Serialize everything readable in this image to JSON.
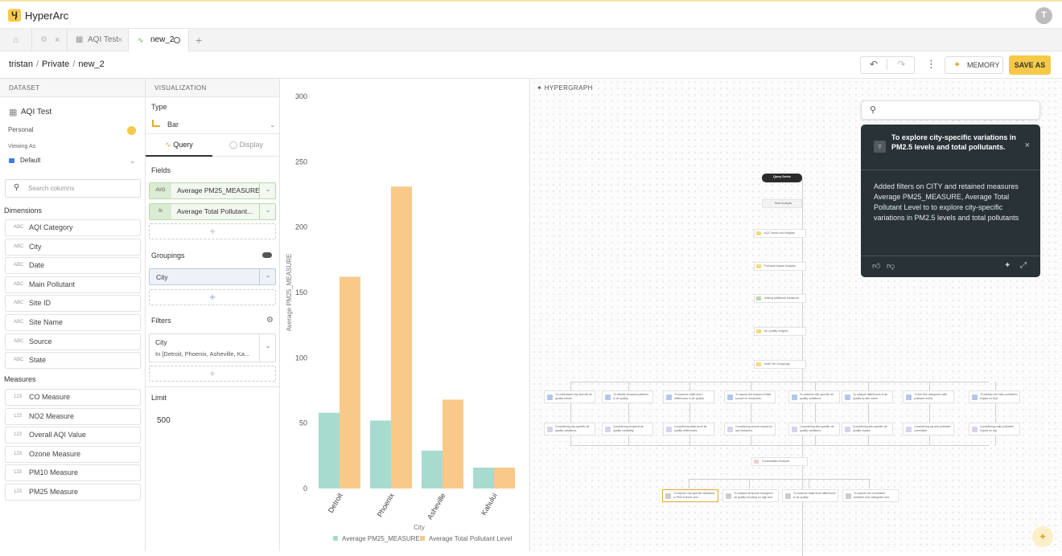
{
  "app": {
    "brand": "HyperArc",
    "avatar": "T",
    "logo_glyph": "Ӌ"
  },
  "tabs": [
    {
      "label": "",
      "icon": "home-icon"
    },
    {
      "label": "",
      "icon": "gear-icon"
    },
    {
      "label": "AQI Test",
      "icon": "table-icon"
    },
    {
      "label": "new_2",
      "icon": "chart-icon"
    }
  ],
  "toolbar": {
    "breadcrumb": [
      "tristan",
      "Private",
      "new_2"
    ],
    "undo": "↶",
    "redo": "↷",
    "more": "⋮",
    "memory_label": "MEMORY",
    "save_label": "SAVE AS"
  },
  "dataset": {
    "header": "DATASET",
    "name": "AQI Test",
    "owner": "Personal",
    "viewing_as_label": "Viewing As",
    "viewing_as_value": "Default",
    "search_placeholder": "Search columns",
    "dimensions_title": "Dimensions",
    "dimensions": [
      "AQI Category",
      "City",
      "Date",
      "Main Pollutant",
      "Site ID",
      "Site Name",
      "Source",
      "State"
    ],
    "dimension_tag": "ABC",
    "measures_title": "Measures",
    "measures": [
      "CO Measure",
      "NO2 Measure",
      "Overall AQI Value",
      "Ozone Measure",
      "PM10 Measure",
      "PM25 Measure"
    ],
    "measure_tag": "123"
  },
  "visualization": {
    "header": "VISUALIZATION",
    "type_label": "Type",
    "type_value": "Bar",
    "tab_query": "Query",
    "tab_display": "Display",
    "fields_label": "Fields",
    "fields": [
      {
        "tag": "AVG",
        "label": "Average PM25_MEASURE"
      },
      {
        "tag": "fx",
        "label": "Average Total Pollutant..."
      }
    ],
    "groupings_label": "Groupings",
    "grouping_value": "City",
    "filters_label": "Filters",
    "filter_field": "City",
    "filter_value": "In [Detroit, Phoenix, Asheville, Ka...",
    "limit_label": "Limit",
    "limit_value": "500",
    "add_glyph": "+"
  },
  "chart_data": {
    "type": "bar",
    "categories": [
      "Detroit",
      "Phoenix",
      "Asheville",
      "Kahului"
    ],
    "series": [
      {
        "name": "Average PM25_MEASURE",
        "values": [
          58,
          52,
          29,
          16
        ],
        "color": "#a8dbcf"
      },
      {
        "name": "Average Total Pollutant Level",
        "values": [
          162,
          231,
          68,
          16
        ],
        "color": "#f9c98a"
      }
    ],
    "xlabel": "City",
    "ylabel": "Average PM25_MEASURE",
    "ylim": [
      0,
      300
    ],
    "yticks": [
      0,
      50,
      100,
      150,
      200,
      250,
      300
    ],
    "grid": false,
    "legend": "bottom"
  },
  "hypergraph": {
    "title": "HYPERGRAPH",
    "card_title": "To explore city-specific variations in PM2.5 levels and total pollutants.",
    "card_body": "Added filters on CITY and retained measures Average PM25_MEASURE, Average Total Pollutant Level to to explore city-specific variations in PM2.5 levels and total pollutants",
    "chain": [
      "Query Series",
      "Start Analysis",
      "AQI Trends and Insights",
      "Pollutant Impact Analysis",
      "Adding additional measures",
      "Air Quality Insights",
      "Multi-Tier Groupings"
    ],
    "branches": [
      "To understand city-specific air quality trends.",
      "To identify temporal patterns in air quality.",
      "To examine state-level differences in air quality.",
      "To assess the impact of data source on measures.",
      "To examine site-specific air quality variations.",
      "To analyze differences in air quality by site name.",
      "To link AQI categories with pollutant levels.",
      "To identify the main pollutant's impact on AQI."
    ],
    "considering": [
      "Considering city-specific air quality variations.",
      "Considering temporal air quality variability.",
      "Considering state-level air quality differences.",
      "Considering source impact on aqi measures.",
      "Considering site-specific air quality variations.",
      "Considering site-specific air quality impact.",
      "Considering aqi and pollutant correlation.",
      "Considering main pollutant impact on aqi."
    ],
    "consolidated": "Consolidated Analysis",
    "bottom": [
      "To explore city-specific variations in PM2.5 levels and",
      "To analyze temporal changes in air quality focusing on high and",
      "To examine state-level differences in air quality.",
      "To explore the correlation between AQI categories and"
    ]
  }
}
